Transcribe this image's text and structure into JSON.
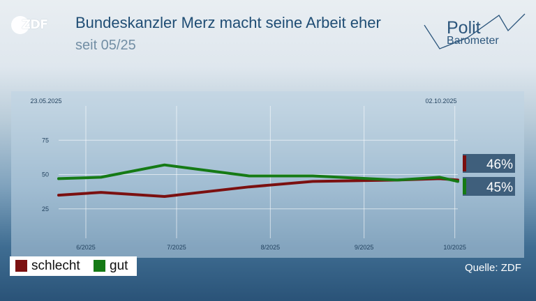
{
  "header": {
    "logo_text": "ZDF",
    "title": "Bundeskanzler Merz macht seine Arbeit eher",
    "subtitle": "seit 05/25",
    "brand_line1": "Polit",
    "brand_line2": "Barometer"
  },
  "legend": [
    {
      "label": "schlecht",
      "color": "#7b1010"
    },
    {
      "label": "gut",
      "color": "#157a15"
    }
  ],
  "source": "Quelle: ZDF",
  "chart_data": {
    "type": "line",
    "date_start": "23.05.2025",
    "date_end": "02.10.2025",
    "x_tick_labels": [
      "6/2025",
      "7/2025",
      "8/2025",
      "9/2025",
      "10/2025"
    ],
    "y_ticks": [
      25,
      50,
      75
    ],
    "ylim": [
      0,
      100
    ],
    "series": [
      {
        "name": "schlecht",
        "color": "#7b1010",
        "x": [
          "2025-05-23",
          "2025-06-06",
          "2025-06-27",
          "2025-07-25",
          "2025-08-15",
          "2025-09-12",
          "2025-09-26",
          "2025-10-02"
        ],
        "values": [
          35,
          37,
          34,
          41,
          45,
          46,
          47,
          46
        ],
        "last_label": "46%"
      },
      {
        "name": "gut",
        "color": "#157a15",
        "x": [
          "2025-05-23",
          "2025-06-06",
          "2025-06-27",
          "2025-07-25",
          "2025-08-15",
          "2025-09-12",
          "2025-09-26",
          "2025-10-02"
        ],
        "values": [
          47,
          48,
          57,
          49,
          49,
          46,
          48,
          45
        ],
        "last_label": "45%"
      }
    ],
    "grid": true
  }
}
